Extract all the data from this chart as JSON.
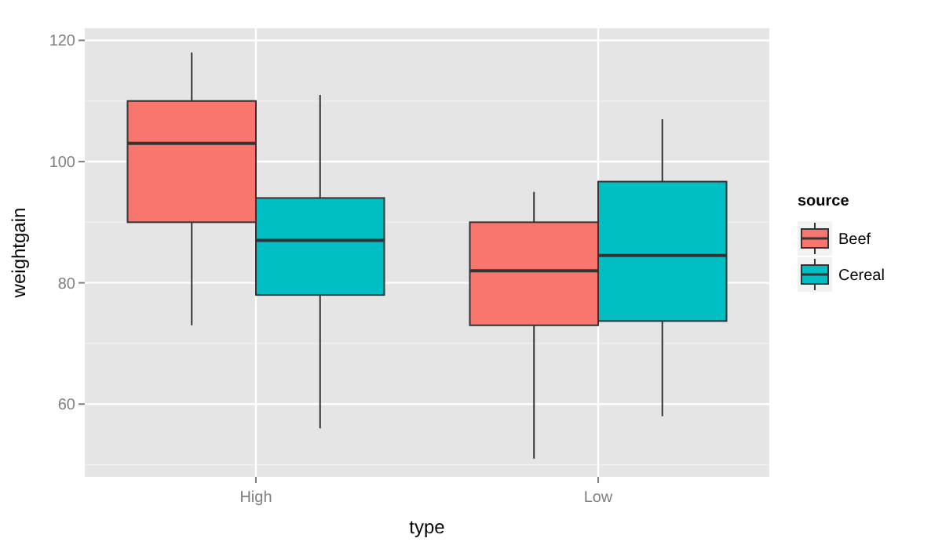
{
  "chart_data": {
    "type": "box",
    "xlabel": "type",
    "ylabel": "weightgain",
    "legend_title": "source",
    "categories": [
      "High",
      "Low"
    ],
    "ylim": [
      48,
      122
    ],
    "yticks": [
      60,
      80,
      100,
      120
    ],
    "grid": true,
    "legend": "right",
    "series": [
      {
        "name": "Beef",
        "color": "#f8766d",
        "boxes": [
          {
            "low": 73,
            "q1": 90,
            "median": 103,
            "q3": 110,
            "high": 118
          },
          {
            "low": 51,
            "q1": 73,
            "median": 82,
            "q3": 90,
            "high": 95
          }
        ]
      },
      {
        "name": "Cereal",
        "color": "#00bfc4",
        "boxes": [
          {
            "low": 56,
            "q1": 78,
            "median": 87,
            "q3": 94,
            "high": 111
          },
          {
            "low": 58,
            "q1": 73.7,
            "median": 84.5,
            "q3": 96.7,
            "high": 107
          }
        ]
      }
    ]
  }
}
